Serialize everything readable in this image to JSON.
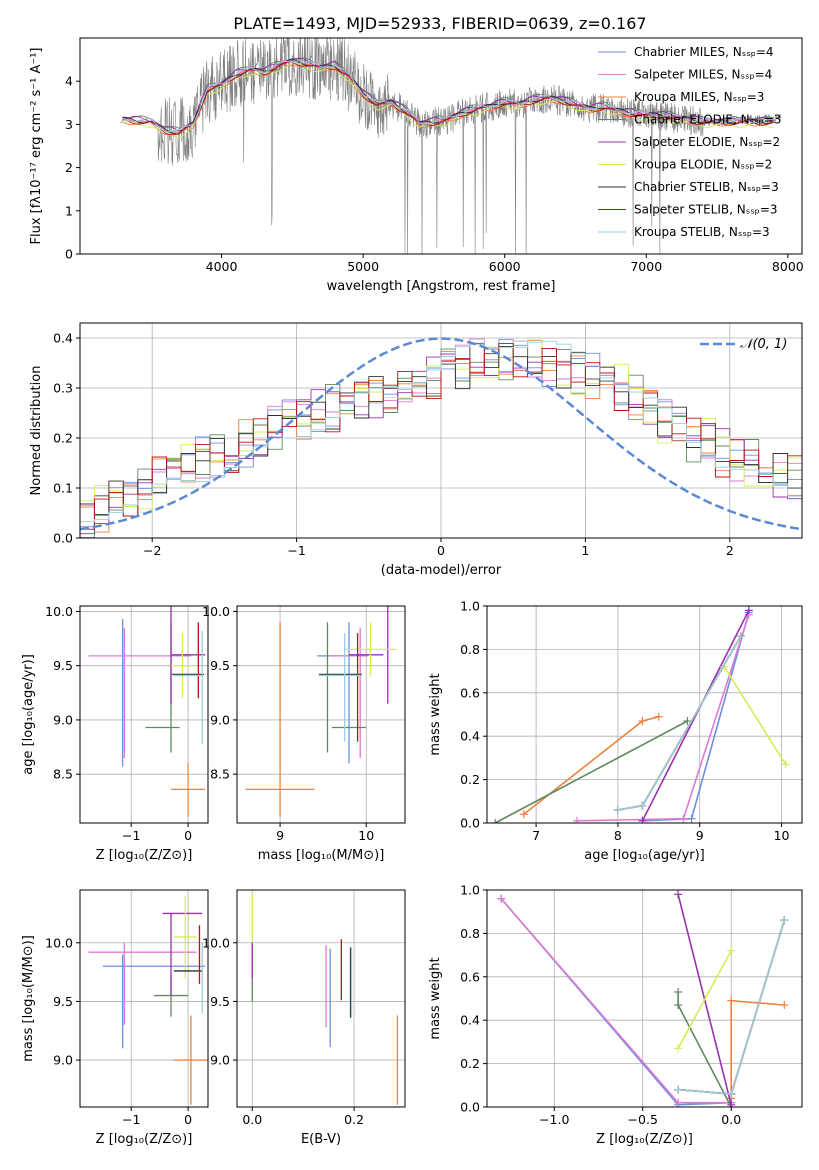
{
  "title": "PLATE=1493, MJD=52933, FIBERID=0639, z=0.167",
  "colors": {
    "data": "#808080",
    "chabrier_miles": "#6b8fe0",
    "salpeter_miles": "#e07ad0",
    "kroupa_miles": "#f08040",
    "chabrier_elodie": "#5e8a5e",
    "salpeter_elodie": "#9b30b0",
    "kroupa_elodie": "#d6ec58",
    "chabrier_stelib": "#303030",
    "salpeter_stelib": "#c01010",
    "kroupa_stelib": "#9ad0dc",
    "gaussian": "#5a8ad6",
    "grid": "#b0b0b0"
  },
  "chart_data": [
    {
      "id": "spectrum",
      "type": "line",
      "xlabel": "wavelength [Angstrom, rest frame]",
      "ylabel": "Flux [fλ10⁻¹⁷ erg cm⁻² s⁻¹ A⁻¹]",
      "xlim": [
        3000,
        8100
      ],
      "ylim": [
        0,
        5
      ],
      "xticks": [
        4000,
        5000,
        6000,
        7000,
        8000
      ],
      "yticks": [
        0,
        1,
        2,
        3,
        4
      ],
      "grid": false,
      "legend_position": "top-right",
      "legend": [
        "Chabrier MILES, Nₛₛₚ=4",
        "Salpeter MILES, Nₛₛₚ=4",
        "Kroupa MILES, Nₛₛₚ=3",
        "Chabrier ELODIE, Nₛₛₚ=3",
        "Salpeter ELODIE, Nₛₛₚ=2",
        "Kroupa ELODIE, Nₛₛₚ=2",
        "Chabrier STELIB, Nₛₛₚ=3",
        "Salpeter STELIB, Nₛₛₚ=3",
        "Kroupa STELIB, Nₛₛₚ=3"
      ],
      "model_continuum": {
        "x": [
          3300,
          3500,
          3600,
          3700,
          3800,
          3900,
          4000,
          4100,
          4200,
          4300,
          4400,
          4500,
          4600,
          4700,
          4800,
          4900,
          5000,
          5100,
          5200,
          5300,
          5400,
          5500,
          5600,
          5700,
          5800,
          5900,
          6000,
          6100,
          6200,
          6300,
          6400,
          6500,
          6600,
          6700,
          6800,
          6900,
          7000,
          7100,
          7200,
          7300,
          7400
        ],
        "y": [
          3.1,
          3.05,
          2.85,
          2.8,
          3.0,
          3.8,
          3.9,
          4.15,
          4.25,
          4.2,
          4.35,
          4.45,
          4.4,
          4.3,
          4.35,
          4.1,
          3.7,
          3.45,
          3.5,
          3.3,
          3.0,
          3.05,
          3.1,
          3.25,
          3.35,
          3.4,
          3.5,
          3.45,
          3.55,
          3.6,
          3.55,
          3.45,
          3.35,
          3.4,
          3.3,
          3.25,
          3.2,
          3.2,
          3.15,
          3.1,
          3.05
        ]
      }
    },
    {
      "id": "residuals",
      "type": "histogram",
      "xlabel": "(data-model)/error",
      "ylabel": "Normed distribution",
      "xlim": [
        -2.5,
        2.5
      ],
      "ylim": [
        0,
        0.43
      ],
      "xticks": [
        -2,
        -1,
        0,
        1,
        2
      ],
      "yticks": [
        0.0,
        0.1,
        0.2,
        0.3,
        0.4
      ],
      "grid": true,
      "legend_position": "top-right",
      "legend": [
        "𝒩(0, 1)"
      ],
      "bin_width": 0.1,
      "histogram_envelope": [
        0.04,
        0.06,
        0.08,
        0.09,
        0.1,
        0.12,
        0.14,
        0.15,
        0.16,
        0.17,
        0.18,
        0.19,
        0.2,
        0.22,
        0.23,
        0.24,
        0.25,
        0.26,
        0.27,
        0.28,
        0.29,
        0.3,
        0.3,
        0.31,
        0.32,
        0.33,
        0.34,
        0.35,
        0.35,
        0.36,
        0.36,
        0.36,
        0.35,
        0.34,
        0.33,
        0.32,
        0.31,
        0.3,
        0.28,
        0.26,
        0.24,
        0.22,
        0.2,
        0.19,
        0.17,
        0.16,
        0.15,
        0.14,
        0.13,
        0.12
      ]
    },
    {
      "id": "age-vs-Z",
      "type": "scatter",
      "xlabel": "Z [log₁₀(Z/Z⊙)]",
      "ylabel": "age  [log₁₀(age/yr)]",
      "xlim": [
        -1.9,
        0.35
      ],
      "ylim": [
        8.05,
        10.05
      ],
      "xticks": [
        -1,
        0
      ],
      "yticks": [
        8.5,
        9.0,
        9.5,
        10.0
      ],
      "grid": true,
      "errorbars": [
        {
          "series": "chabrier_miles",
          "x": -1.15,
          "y": 9.25,
          "xerr": 0.0,
          "yerr": 0.68
        },
        {
          "series": "salpeter_miles",
          "x": -1.12,
          "y": 9.25,
          "xerr": 0.0,
          "yerr": 0.6
        },
        {
          "series": "salpeter_miles",
          "x": -0.85,
          "y": 9.59,
          "xerr": 0.9,
          "yerr": 0.0
        },
        {
          "series": "kroupa_miles",
          "x": 0.0,
          "y": 8.36,
          "xerr": 0.3,
          "yerr": 0.25
        },
        {
          "series": "chabrier_elodie",
          "x": -0.3,
          "y": 9.3,
          "xerr": 0.0,
          "yerr": 0.6
        },
        {
          "series": "chabrier_elodie",
          "x": -0.45,
          "y": 8.93,
          "xerr": 0.3,
          "yerr": 0.0
        },
        {
          "series": "salpeter_elodie",
          "x": -0.3,
          "y": 9.6,
          "xerr": 0.0,
          "yerr": 0.45
        },
        {
          "series": "salpeter_elodie",
          "x": 0.0,
          "y": 9.6,
          "xerr": 0.3,
          "yerr": 0.0
        },
        {
          "series": "kroupa_elodie",
          "x": -0.1,
          "y": 9.5,
          "xerr": 0.2,
          "yerr": 0.3
        },
        {
          "series": "chabrier_stelib",
          "x": 0.0,
          "y": 9.42,
          "xerr": 0.28,
          "yerr": 0.0
        },
        {
          "series": "salpeter_stelib",
          "x": 0.18,
          "y": 9.55,
          "xerr": 0.0,
          "yerr": 0.35
        },
        {
          "series": "kroupa_stelib",
          "x": 0.25,
          "y": 9.3,
          "xerr": 0.0,
          "yerr": 0.52
        },
        {
          "series": "kroupa_stelib",
          "x": 0.0,
          "y": 9.41,
          "xerr": 0.26,
          "yerr": 0.0
        }
      ]
    },
    {
      "id": "age-vs-mass",
      "type": "scatter",
      "xlabel": "mass [log₁₀(M/M⊙)]",
      "ylabel": "",
      "xlim": [
        8.5,
        10.45
      ],
      "ylim": [
        8.05,
        10.05
      ],
      "xticks": [
        9,
        10
      ],
      "yticks": [
        8.5,
        9.0,
        9.5,
        10.0
      ],
      "grid": true,
      "errorbars": [
        {
          "series": "kroupa_miles",
          "x": 9.0,
          "y": 8.36,
          "xerr": 0.4,
          "yerr": 0.25
        },
        {
          "series": "kroupa_miles",
          "x": 9.0,
          "y": 9.25,
          "xerr": 0.0,
          "yerr": 0.65
        },
        {
          "series": "chabrier_miles",
          "x": 9.8,
          "y": 9.25,
          "xerr": 0.0,
          "yerr": 0.65
        },
        {
          "series": "chabrier_miles",
          "x": 9.65,
          "y": 9.59,
          "xerr": 0.22,
          "yerr": 0.0
        },
        {
          "series": "salpeter_miles",
          "x": 9.93,
          "y": 9.25,
          "xerr": 0.0,
          "yerr": 0.6
        },
        {
          "series": "salpeter_miles",
          "x": 9.8,
          "y": 9.59,
          "xerr": 0.22,
          "yerr": 0.0
        },
        {
          "series": "chabrier_elodie",
          "x": 9.55,
          "y": 9.3,
          "xerr": 0.0,
          "yerr": 0.6
        },
        {
          "series": "chabrier_elodie",
          "x": 9.8,
          "y": 8.93,
          "xerr": 0.2,
          "yerr": 0.0
        },
        {
          "series": "salpeter_elodie",
          "x": 10.25,
          "y": 9.6,
          "xerr": 0.0,
          "yerr": 0.45
        },
        {
          "series": "salpeter_elodie",
          "x": 10.0,
          "y": 9.6,
          "xerr": 0.2,
          "yerr": 0.0
        },
        {
          "series": "kroupa_elodie",
          "x": 10.05,
          "y": 9.65,
          "xerr": 0.3,
          "yerr": 0.25
        },
        {
          "series": "chabrier_stelib",
          "x": 9.7,
          "y": 9.42,
          "xerr": 0.25,
          "yerr": 0.0
        },
        {
          "series": "salpeter_stelib",
          "x": 9.9,
          "y": 9.3,
          "xerr": 0.0,
          "yerr": 0.5
        },
        {
          "series": "kroupa_stelib",
          "x": 9.75,
          "y": 9.3,
          "xerr": 0.0,
          "yerr": 0.5
        },
        {
          "series": "kroupa_stelib",
          "x": 9.7,
          "y": 9.41,
          "xerr": 0.25,
          "yerr": 0.0
        }
      ]
    },
    {
      "id": "massweight-vs-age",
      "type": "line",
      "xlabel": "age  [log₁₀(age/yr)]",
      "ylabel": "mass weight",
      "xlim": [
        6.4,
        10.25
      ],
      "ylim": [
        0,
        1
      ],
      "xticks": [
        7,
        8,
        9,
        10
      ],
      "yticks": [
        0.0,
        0.2,
        0.4,
        0.6,
        0.8,
        1.0
      ],
      "grid": true,
      "series": [
        {
          "key": "chabrier_miles",
          "x": [
            8.3,
            8.9,
            9.6
          ],
          "y": [
            0.01,
            0.02,
            0.97
          ]
        },
        {
          "key": "salpeter_miles",
          "x": [
            7.5,
            8.8,
            9.6
          ],
          "y": [
            0.01,
            0.02,
            0.96
          ]
        },
        {
          "key": "kroupa_miles",
          "x": [
            6.85,
            8.3,
            8.5
          ],
          "y": [
            0.04,
            0.47,
            0.49
          ]
        },
        {
          "key": "chabrier_elodie",
          "x": [
            6.5,
            8.85
          ],
          "y": [
            0.0,
            0.47
          ]
        },
        {
          "key": "salpeter_elodie",
          "x": [
            8.3,
            9.6
          ],
          "y": [
            0.01,
            0.98
          ]
        },
        {
          "key": "kroupa_elodie",
          "x": [
            9.3,
            10.05
          ],
          "y": [
            0.72,
            0.27
          ]
        },
        {
          "key": "chabrier_stelib",
          "x": [
            8.0,
            8.3,
            9.5
          ],
          "y": [
            0.06,
            0.08,
            0.86
          ]
        },
        {
          "key": "salpeter_stelib",
          "x": [
            8.0,
            8.3,
            9.5
          ],
          "y": [
            0.06,
            0.08,
            0.86
          ]
        },
        {
          "key": "kroupa_stelib",
          "x": [
            8.0,
            8.3,
            9.5
          ],
          "y": [
            0.06,
            0.08,
            0.86
          ]
        }
      ]
    },
    {
      "id": "mass-vs-Z",
      "type": "scatter",
      "xlabel": "Z [log₁₀(Z/Z⊙)]",
      "ylabel": "mass [log₁₀(M/M⊙)]",
      "xlim": [
        -1.9,
        0.35
      ],
      "ylim": [
        8.6,
        10.45
      ],
      "xticks": [
        -1,
        0
      ],
      "yticks": [
        9.0,
        9.5,
        10.0
      ],
      "grid": true,
      "errorbars": [
        {
          "series": "chabrier_miles",
          "x": -1.15,
          "y": 9.5,
          "xerr": 0.0,
          "yerr": 0.4
        },
        {
          "series": "chabrier_miles",
          "x": -0.6,
          "y": 9.8,
          "xerr": 0.9,
          "yerr": 0.0
        },
        {
          "series": "salpeter_miles",
          "x": -1.12,
          "y": 9.65,
          "xerr": 0.0,
          "yerr": 0.35
        },
        {
          "series": "salpeter_miles",
          "x": -0.8,
          "y": 9.92,
          "xerr": 0.95,
          "yerr": 0.0
        },
        {
          "series": "kroupa_miles",
          "x": 0.05,
          "y": 9.0,
          "xerr": 0.3,
          "yerr": 0.38
        },
        {
          "series": "chabrier_elodie",
          "x": -0.3,
          "y": 9.55,
          "xerr": 0.3,
          "yerr": 0.18
        },
        {
          "series": "salpeter_elodie",
          "x": -0.1,
          "y": 10.25,
          "xerr": 0.35,
          "yerr": 0.0
        },
        {
          "series": "salpeter_elodie",
          "x": -0.3,
          "y": 9.9,
          "xerr": 0.0,
          "yerr": 0.35
        },
        {
          "series": "kroupa_elodie",
          "x": -0.05,
          "y": 10.05,
          "xerr": 0.2,
          "yerr": 0.35
        },
        {
          "series": "chabrier_stelib",
          "x": 0.0,
          "y": 9.76,
          "xerr": 0.25,
          "yerr": 0.0
        },
        {
          "series": "salpeter_stelib",
          "x": 0.2,
          "y": 9.9,
          "xerr": 0.0,
          "yerr": 0.25
        },
        {
          "series": "kroupa_stelib",
          "x": 0.25,
          "y": 9.7,
          "xerr": 0.0,
          "yerr": 0.3
        }
      ]
    },
    {
      "id": "mass-vs-ebv",
      "type": "scatter",
      "xlabel": "E(B-V)",
      "ylabel": "",
      "xlim": [
        -0.03,
        0.3
      ],
      "ylim": [
        8.6,
        10.45
      ],
      "xticks": [
        0.0,
        0.2
      ],
      "yticks": [
        9.0,
        9.5,
        10.0
      ],
      "grid": true,
      "errorbars": [
        {
          "series": "kroupa_elodie",
          "x": 0.0,
          "y": 10.2,
          "xerr": 0.0,
          "yerr": 0.22
        },
        {
          "series": "chabrier_elodie",
          "x": 0.0,
          "y": 9.75,
          "xerr": 0.0,
          "yerr": 0.25
        },
        {
          "series": "salpeter_elodie",
          "x": 0.0,
          "y": 9.85,
          "xerr": 0.0,
          "yerr": 0.15
        },
        {
          "series": "salpeter_miles",
          "x": 0.145,
          "y": 9.63,
          "xerr": 0.0,
          "yerr": 0.35
        },
        {
          "series": "chabrier_miles",
          "x": 0.153,
          "y": 9.53,
          "xerr": 0.0,
          "yerr": 0.42
        },
        {
          "series": "salpeter_stelib",
          "x": 0.175,
          "y": 9.77,
          "xerr": 0.0,
          "yerr": 0.26
        },
        {
          "series": "chabrier_stelib",
          "x": 0.193,
          "y": 9.66,
          "xerr": 0.0,
          "yerr": 0.3
        },
        {
          "series": "kroupa_stelib",
          "x": 0.195,
          "y": 9.66,
          "xerr": 0.0,
          "yerr": 0.3
        },
        {
          "series": "kroupa_miles",
          "x": 0.285,
          "y": 9.0,
          "xerr": 0.0,
          "yerr": 0.38
        }
      ]
    },
    {
      "id": "massweight-vs-Z",
      "type": "line",
      "xlabel": "Z [log₁₀(Z/Z⊙)]",
      "ylabel": "mass weight",
      "xlim": [
        -1.38,
        0.4
      ],
      "ylim": [
        0,
        1
      ],
      "xticks": [
        -1.0,
        -0.5,
        0.0
      ],
      "yticks": [
        0.0,
        0.2,
        0.4,
        0.6,
        0.8,
        1.0
      ],
      "grid": true,
      "series": [
        {
          "key": "chabrier_miles",
          "x": [
            -1.3,
            -0.3,
            0.0
          ],
          "y": [
            0.96,
            0.01,
            0.02
          ]
        },
        {
          "key": "salpeter_miles",
          "x": [
            -1.3,
            -0.3,
            0.0
          ],
          "y": [
            0.96,
            0.02,
            0.02
          ]
        },
        {
          "key": "kroupa_miles",
          "x": [
            0.0,
            0.0,
            0.3
          ],
          "y": [
            0.04,
            0.49,
            0.47
          ]
        },
        {
          "key": "chabrier_elodie",
          "x": [
            -0.3,
            -0.3,
            0.0
          ],
          "y": [
            0.53,
            0.47,
            0.0
          ]
        },
        {
          "key": "salpeter_elodie",
          "x": [
            -0.3,
            0.0
          ],
          "y": [
            0.98,
            0.01
          ]
        },
        {
          "key": "kroupa_elodie",
          "x": [
            -0.3,
            0.0
          ],
          "y": [
            0.27,
            0.72
          ]
        },
        {
          "key": "chabrier_stelib",
          "x": [
            -0.3,
            0.0,
            0.3
          ],
          "y": [
            0.08,
            0.06,
            0.86
          ]
        },
        {
          "key": "salpeter_stelib",
          "x": [
            -0.3,
            0.0,
            0.3
          ],
          "y": [
            0.08,
            0.06,
            0.86
          ]
        },
        {
          "key": "kroupa_stelib",
          "x": [
            -0.3,
            0.0,
            0.3
          ],
          "y": [
            0.08,
            0.06,
            0.86
          ]
        }
      ]
    }
  ]
}
